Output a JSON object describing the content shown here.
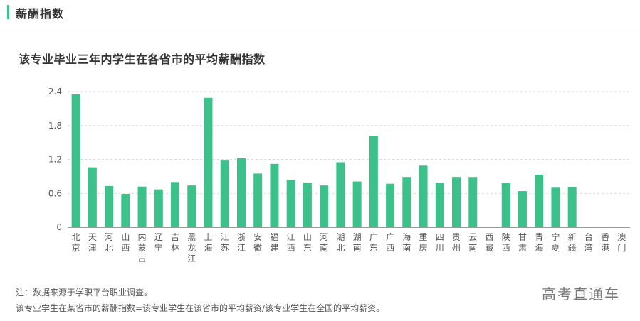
{
  "section": {
    "title": "薪酬指数"
  },
  "chart_data": {
    "type": "bar",
    "title": "该专业毕业三年内学生在各省市的平均薪酬指数",
    "categories": [
      "北京",
      "天津",
      "河北",
      "山西",
      "内蒙古",
      "辽宁",
      "吉林",
      "黑龙江",
      "上海",
      "江苏",
      "浙江",
      "安徽",
      "福建",
      "江西",
      "山东",
      "河南",
      "湖北",
      "湖南",
      "广东",
      "广西",
      "海南",
      "重庆",
      "四川",
      "贵州",
      "云南",
      "西藏",
      "陕西",
      "甘肃",
      "青海",
      "宁夏",
      "新疆",
      "台湾",
      "香港",
      "澳门"
    ],
    "values": [
      2.35,
      1.06,
      0.73,
      0.59,
      0.72,
      0.67,
      0.8,
      0.74,
      2.29,
      1.18,
      1.22,
      0.95,
      1.12,
      0.84,
      0.79,
      0.74,
      1.15,
      0.81,
      1.62,
      0.77,
      0.89,
      1.09,
      0.79,
      0.89,
      0.89,
      null,
      0.78,
      0.64,
      0.93,
      0.7,
      0.71,
      null,
      null,
      null
    ],
    "yticks": [
      "2.4",
      "1.8",
      "1.2",
      "0.6",
      "0"
    ],
    "ylim": [
      0,
      2.4
    ],
    "grid": true,
    "bar_color": "#3cc18b"
  },
  "notes": {
    "line1": "注：数据来源于学职平台职业调查。",
    "line2": "该专业学生在某省市的薪酬指数=该专业学生在该省市的平均薪资/该专业学生在全国的平均薪资。"
  },
  "watermark": "高考直通车"
}
